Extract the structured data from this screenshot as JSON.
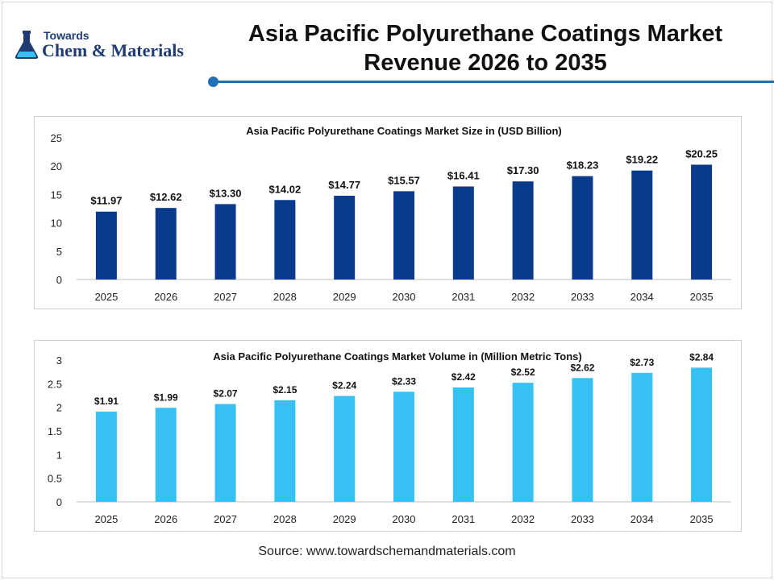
{
  "header": {
    "title_line1": "Asia Pacific Polyurethane Coatings Market",
    "title_line2": "Revenue 2026 to 2035"
  },
  "logo": {
    "top": "Towards",
    "main": "Chem & Materials",
    "icon": "flask-icon"
  },
  "colors": {
    "revenue_bar": "#0a3a8c",
    "volume_bar": "#36c0f4",
    "accent": "#1f6fb8"
  },
  "chart_data": [
    {
      "type": "bar",
      "title": "Asia Pacific Polyurethane Coatings Market Size in (USD Billion)",
      "categories": [
        "2025",
        "2026",
        "2027",
        "2028",
        "2029",
        "2030",
        "2031",
        "2032",
        "2033",
        "2034",
        "2035"
      ],
      "values": [
        11.97,
        12.62,
        13.3,
        14.02,
        14.77,
        15.57,
        16.41,
        17.3,
        18.23,
        19.22,
        20.25
      ],
      "labels": [
        "$11.97",
        "$12.62",
        "$13.30",
        "$14.02",
        "$14.77",
        "$15.57",
        "$16.41",
        "$17.30",
        "$18.23",
        "$19.22",
        "$20.25"
      ],
      "yticks": [
        "0",
        "5",
        "10",
        "15",
        "20",
        "25"
      ],
      "ylim": [
        0,
        25
      ],
      "grid": false,
      "color": "#0a3a8c"
    },
    {
      "type": "bar",
      "title": "Asia Pacific Polyurethane Coatings Market Volume in (Million Metric Tons)",
      "categories": [
        "2025",
        "2026",
        "2027",
        "2028",
        "2029",
        "2030",
        "2031",
        "2032",
        "2033",
        "2034",
        "2035"
      ],
      "values": [
        1.91,
        1.99,
        2.07,
        2.15,
        2.24,
        2.33,
        2.42,
        2.52,
        2.62,
        2.73,
        2.84
      ],
      "labels": [
        "$1.91",
        "$1.99",
        "$2.07",
        "$2.15",
        "$2.24",
        "$2.33",
        "$2.42",
        "$2.52",
        "$2.62",
        "$2.73",
        "$2.84"
      ],
      "yticks": [
        "0",
        "0.5",
        "1",
        "1.5",
        "2",
        "2.5",
        "3"
      ],
      "ylim": [
        0,
        3
      ],
      "grid": false,
      "color": "#36c0f4"
    }
  ],
  "footer": {
    "source": "Source: www.towardschemandmaterials.com"
  }
}
